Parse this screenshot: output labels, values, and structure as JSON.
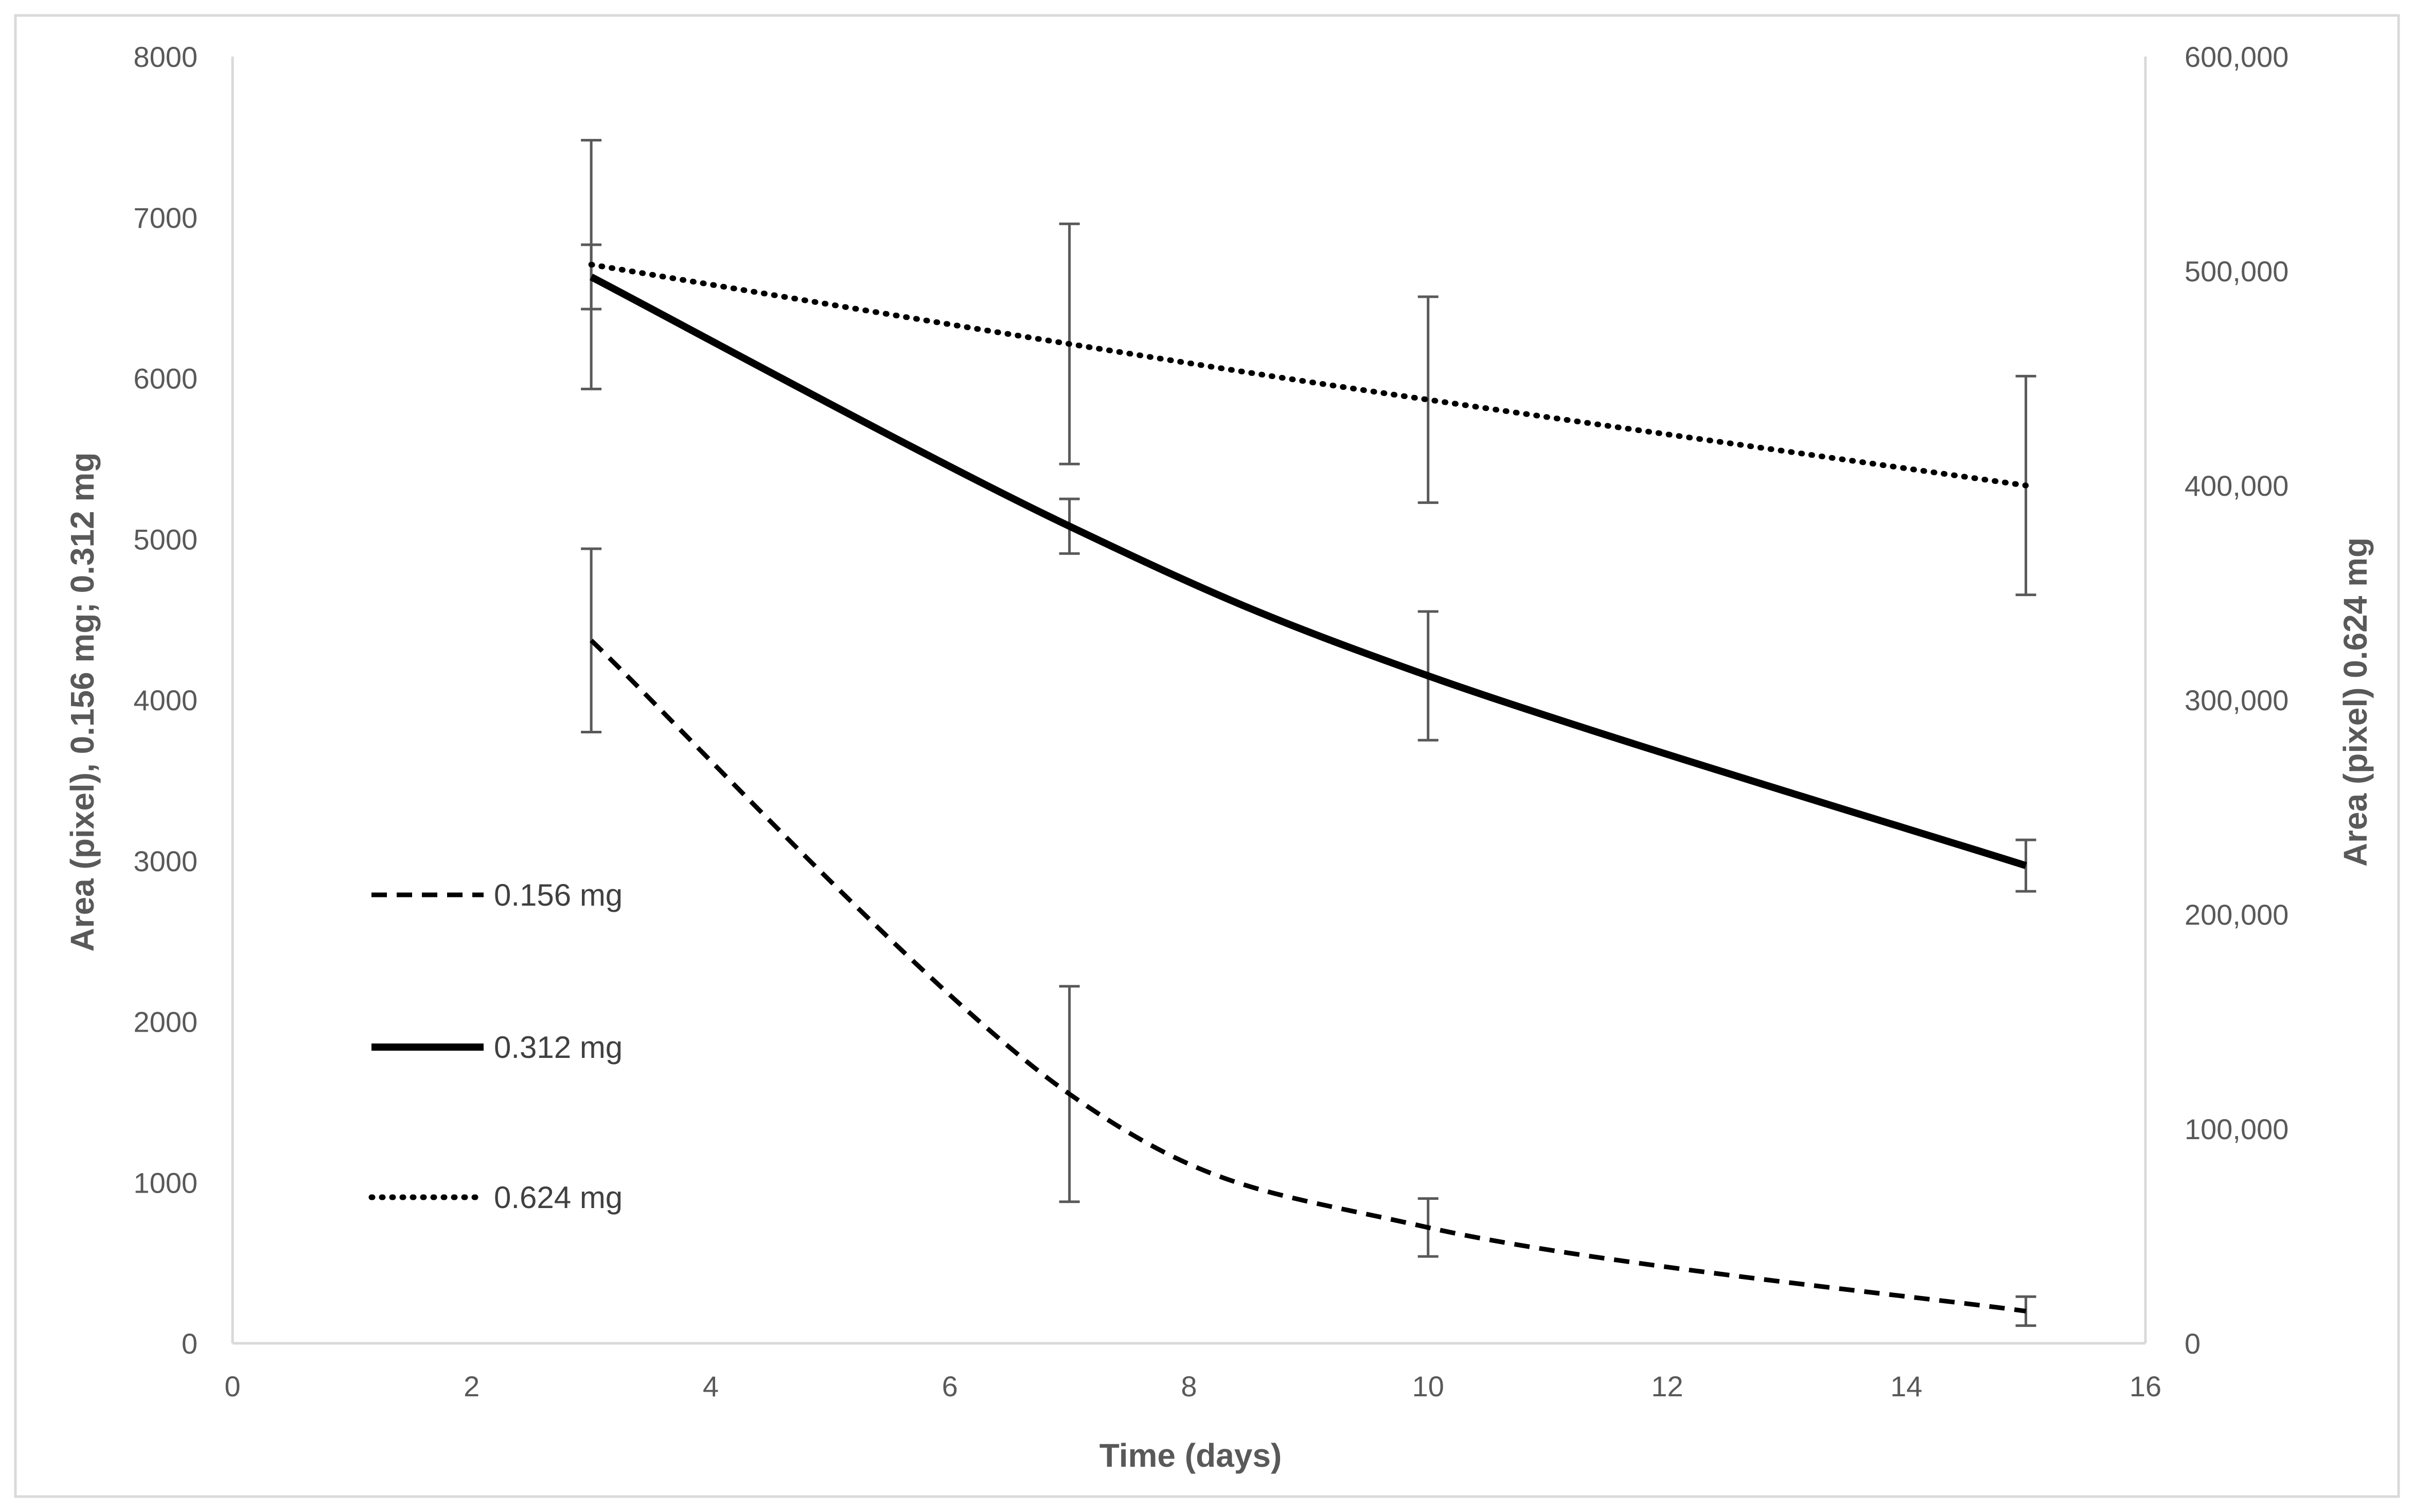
{
  "chart_data": {
    "type": "line",
    "title": "",
    "xlabel": "Time (days)",
    "ylabel": "Area (pixel), 0.156 mg; 0.312 mg",
    "y2label": "Area (pixel) 0.624 mg",
    "xlim": [
      0,
      16
    ],
    "ylim": [
      0,
      8000
    ],
    "y2lim": [
      0,
      600000
    ],
    "x_ticks": [
      "0",
      "2",
      "4",
      "6",
      "8",
      "10",
      "12",
      "14",
      "16"
    ],
    "y_ticks": [
      "0",
      "1000",
      "2000",
      "3000",
      "4000",
      "5000",
      "6000",
      "7000",
      "8000"
    ],
    "y2_ticks": [
      "0",
      "100,000",
      "200,000",
      "300,000",
      "400,000",
      "500,000",
      "600,000"
    ],
    "grid": false,
    "legend_position": "left",
    "series": [
      {
        "name": "0.156 mg",
        "axis": "left",
        "style": "dashed",
        "x": [
          3,
          7,
          10,
          15
        ],
        "values": [
          4370,
          1550,
          720,
          200
        ],
        "error": [
          570,
          670,
          180,
          90
        ]
      },
      {
        "name": "0.312 mg",
        "axis": "left",
        "style": "solid",
        "x": [
          3,
          7,
          10,
          15
        ],
        "values": [
          6630,
          5080,
          4150,
          2970
        ],
        "error": [
          200,
          170,
          400,
          160
        ]
      },
      {
        "name": "0.624 mg",
        "axis": "right",
        "style": "dotted",
        "x": [
          3,
          7,
          10,
          15
        ],
        "values": [
          503000,
          466000,
          440000,
          400000
        ],
        "error": [
          58000,
          56000,
          48000,
          51000
        ]
      }
    ]
  }
}
